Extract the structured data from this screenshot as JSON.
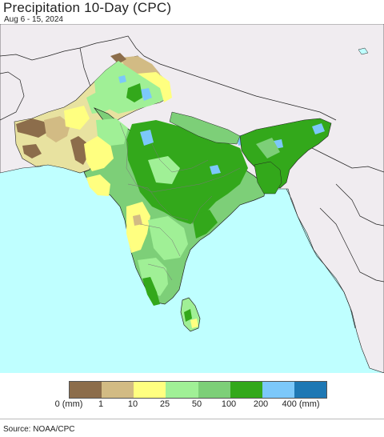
{
  "header": {
    "title": "Precipitation 10-Day (CPC)",
    "subtitle": "Aug 6 - 15, 2024"
  },
  "legend": {
    "swatches": [
      {
        "color": "#8c6d4b"
      },
      {
        "color": "#d2bb84"
      },
      {
        "color": "#ffff80"
      },
      {
        "color": "#a0f096"
      },
      {
        "color": "#7dcf78"
      },
      {
        "color": "#33a81b"
      },
      {
        "color": "#7cc8fa"
      },
      {
        "color": "#1e78b4"
      }
    ],
    "tick_labels": [
      "0 (mm)",
      "1",
      "10",
      "25",
      "50",
      "100",
      "200",
      "400 (mm)"
    ]
  },
  "map": {
    "ocean_color": "#bfffff",
    "land_outside_color": "#f0ecf0"
  },
  "footer": {
    "source": "Source: NOAA/CPC"
  }
}
